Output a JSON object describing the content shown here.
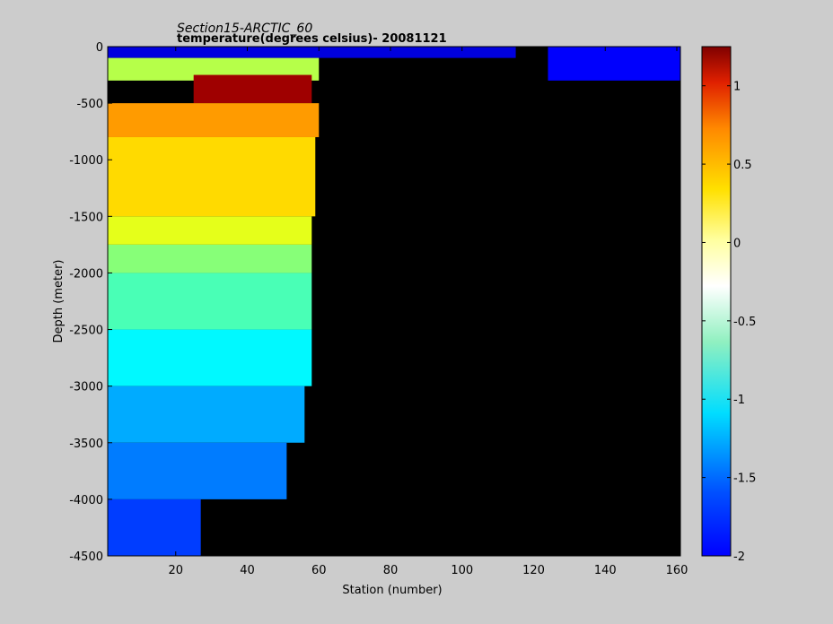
{
  "chart_data": {
    "type": "heatmap",
    "title": "Section15-ARCTIC_60",
    "subtitle": "temperature(degrees  celsius)- 20081121",
    "xlabel": "Station (number)",
    "ylabel": "Depth (meter)",
    "xlim": [
      1,
      161
    ],
    "ylim": [
      -4500,
      0
    ],
    "x_ticks": [
      20,
      40,
      60,
      80,
      100,
      120,
      140,
      160
    ],
    "y_ticks": [
      0,
      -500,
      -1000,
      -1500,
      -2000,
      -2500,
      -3000,
      -3500,
      -4000,
      -4500
    ],
    "colorbar": {
      "clim": [
        -2,
        1.25
      ],
      "ticks": [
        1,
        0.5,
        0,
        -0.5,
        -1,
        -1.5,
        -2
      ],
      "colormap": "jet"
    },
    "no_data_color": "#000000",
    "background_color": "#cccccc",
    "depth_bands": [
      {
        "depth": [
          0,
          -100
        ],
        "stations": [
          1,
          115
        ],
        "value": -1.7
      },
      {
        "depth": [
          -100,
          -300
        ],
        "stations": [
          1,
          60
        ],
        "value": -0.2
      },
      {
        "depth": [
          -250,
          -500
        ],
        "stations": [
          25,
          58
        ],
        "value": 1.15
      },
      {
        "depth": [
          -500,
          -800
        ],
        "stations": [
          1,
          60
        ],
        "value": 0.35
      },
      {
        "depth": [
          -800,
          -1500
        ],
        "stations": [
          1,
          59
        ],
        "value": 0.15
      },
      {
        "depth": [
          -1500,
          -1750
        ],
        "stations": [
          1,
          58
        ],
        "value": -0.05
      },
      {
        "depth": [
          -1750,
          -2000
        ],
        "stations": [
          1,
          58
        ],
        "value": -0.35
      },
      {
        "depth": [
          -2000,
          -2500
        ],
        "stations": [
          1,
          58
        ],
        "value": -0.55
      },
      {
        "depth": [
          -2500,
          -3000
        ],
        "stations": [
          1,
          58
        ],
        "value": -0.8
      },
      {
        "depth": [
          -3000,
          -3500
        ],
        "stations": [
          1,
          56
        ],
        "value": -1.05
      },
      {
        "depth": [
          -3500,
          -4000
        ],
        "stations": [
          1,
          51
        ],
        "value": -1.2
      },
      {
        "depth": [
          -4000,
          -4500
        ],
        "stations": [
          1,
          27
        ],
        "value": -1.4
      },
      {
        "depth": [
          0,
          -300
        ],
        "stations": [
          124,
          161
        ],
        "value": -1.6
      }
    ]
  }
}
